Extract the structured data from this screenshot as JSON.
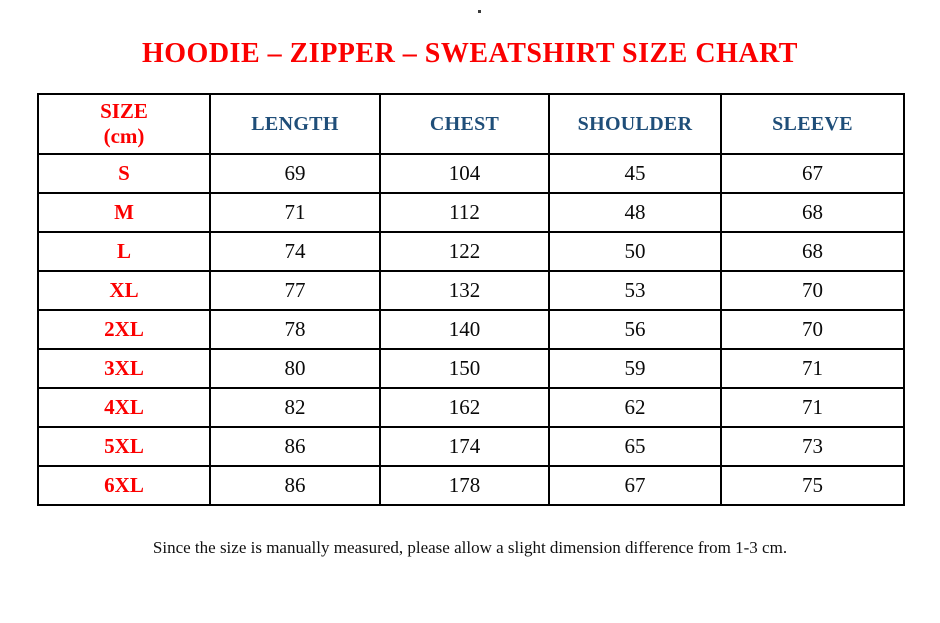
{
  "title": "HOODIE – ZIPPER – SWEATSHIRT SIZE CHART",
  "colors": {
    "title_red": "#fb0000",
    "header_blue": "#1f4e79",
    "border_black": "#000000",
    "value_black": "#0a0a0a",
    "background": "#ffffff"
  },
  "table": {
    "size_header": {
      "line1": "SIZE",
      "line2": "(cm)"
    },
    "columns": [
      "LENGTH",
      "CHEST",
      "SHOULDER",
      "SLEEVE"
    ],
    "rows": [
      {
        "size": "S",
        "values": [
          "69",
          "104",
          "45",
          "67"
        ]
      },
      {
        "size": "M",
        "values": [
          "71",
          "112",
          "48",
          "68"
        ]
      },
      {
        "size": "L",
        "values": [
          "74",
          "122",
          "50",
          "68"
        ]
      },
      {
        "size": "XL",
        "values": [
          "77",
          "132",
          "53",
          "70"
        ]
      },
      {
        "size": "2XL",
        "values": [
          "78",
          "140",
          "56",
          "70"
        ]
      },
      {
        "size": "3XL",
        "values": [
          "80",
          "150",
          "59",
          "71"
        ]
      },
      {
        "size": "4XL",
        "values": [
          "82",
          "162",
          "62",
          "71"
        ]
      },
      {
        "size": "5XL",
        "values": [
          "86",
          "174",
          "65",
          "73"
        ]
      },
      {
        "size": "6XL",
        "values": [
          "86",
          "178",
          "67",
          "75"
        ]
      }
    ]
  },
  "footer_note": "Since the size is manually measured, please allow a slight dimension difference from 1-3 cm.",
  "chart_data": {
    "type": "table",
    "title": "HOODIE – ZIPPER – SWEATSHIRT SIZE CHART",
    "columns": [
      "SIZE (cm)",
      "LENGTH",
      "CHEST",
      "SHOULDER",
      "SLEEVE"
    ],
    "rows": [
      [
        "S",
        69,
        104,
        45,
        67
      ],
      [
        "M",
        71,
        112,
        48,
        68
      ],
      [
        "L",
        74,
        122,
        50,
        68
      ],
      [
        "XL",
        77,
        132,
        53,
        70
      ],
      [
        "2XL",
        78,
        140,
        56,
        70
      ],
      [
        "3XL",
        80,
        150,
        59,
        71
      ],
      [
        "4XL",
        82,
        162,
        62,
        71
      ],
      [
        "5XL",
        86,
        174,
        65,
        73
      ],
      [
        "6XL",
        86,
        178,
        67,
        75
      ]
    ],
    "note": "Since the size is manually measured, please allow a slight dimension difference from 1-3 cm.",
    "units": "cm"
  }
}
